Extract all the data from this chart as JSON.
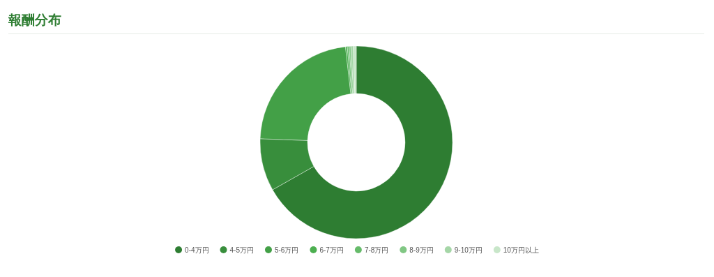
{
  "chart_data": {
    "type": "donut",
    "title": "報酬分布",
    "categories": [
      "0-4万円",
      "4-5万円",
      "5-6万円",
      "6-7万円",
      "7-8万円",
      "8-9万円",
      "9-10万円",
      "10万円以上"
    ],
    "values": [
      66.8,
      8.8,
      22.6,
      0.3,
      0.3,
      0.3,
      0.4,
      0.5
    ],
    "colors": [
      "#2e7d32",
      "#388e3c",
      "#43a047",
      "#4caf50",
      "#66bb6a",
      "#81c784",
      "#a5d6a7",
      "#c8e6c9"
    ],
    "legend": "bottom"
  }
}
